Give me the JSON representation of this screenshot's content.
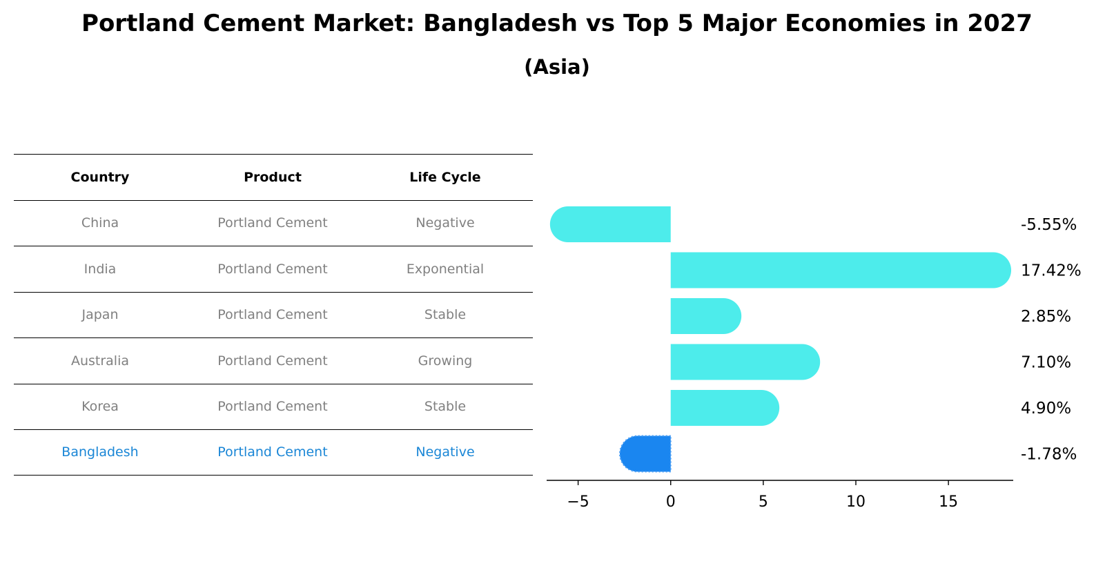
{
  "title": "Portland Cement Market: Bangladesh vs Top 5 Major Economies in 2027",
  "subtitle": "(Asia)",
  "table": {
    "headers": [
      "Country",
      "Product",
      "Life Cycle"
    ],
    "rows": [
      {
        "country": "China",
        "product": "Portland Cement",
        "life_cycle": "Negative"
      },
      {
        "country": "India",
        "product": "Portland Cement",
        "life_cycle": "Exponential"
      },
      {
        "country": "Japan",
        "product": "Portland Cement",
        "life_cycle": "Stable"
      },
      {
        "country": "Australia",
        "product": "Portland Cement",
        "life_cycle": "Growing"
      },
      {
        "country": "Korea",
        "product": "Portland Cement",
        "life_cycle": "Stable"
      },
      {
        "country": "Bangladesh",
        "product": "Portland Cement",
        "life_cycle": "Negative"
      }
    ]
  },
  "chart_data": {
    "type": "bar",
    "orientation": "horizontal",
    "categories": [
      "China",
      "India",
      "Japan",
      "Australia",
      "Korea",
      "Bangladesh"
    ],
    "values": [
      -5.55,
      17.42,
      2.85,
      7.1,
      4.9,
      -1.78
    ],
    "value_labels": [
      "-5.55%",
      "17.42%",
      "2.85%",
      "7.10%",
      "4.90%",
      "-1.78%"
    ],
    "highlight_index": 5,
    "colors": {
      "default": "#4deceb",
      "highlight": "#1a86f0"
    },
    "xticks": [
      -5,
      0,
      5,
      10,
      15
    ],
    "xtick_labels": [
      "−5",
      "0",
      "5",
      "10",
      "15"
    ],
    "xlim": [
      -6.7,
      18.5
    ],
    "grid": false
  }
}
